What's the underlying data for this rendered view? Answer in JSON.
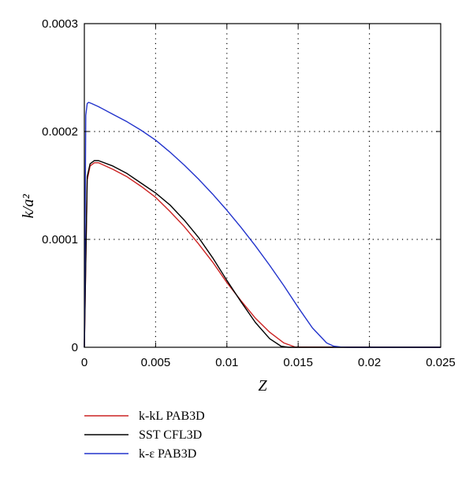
{
  "chart_data": {
    "type": "line",
    "xlabel": "Z",
    "ylabel": "k/a²",
    "xlim": [
      0,
      0.025
    ],
    "ylim": [
      0,
      0.0003
    ],
    "x_ticks": [
      0,
      0.005,
      0.01,
      0.015,
      0.02,
      0.025
    ],
    "x_tick_labels": [
      "0",
      "0.005",
      "0.01",
      "0.015",
      "0.02",
      "0.025"
    ],
    "y_ticks": [
      0,
      0.0001,
      0.0002,
      0.0003
    ],
    "y_tick_labels": [
      "0",
      "0.0001",
      "0.0002",
      "0.0003"
    ],
    "grid": "dotted",
    "legend_position": "below",
    "series": [
      {
        "name": "k-kL PAB3D",
        "color": "#cc2222",
        "x": [
          0,
          0.0002,
          0.0004,
          0.0007,
          0.001,
          0.002,
          0.003,
          0.004,
          0.005,
          0.006,
          0.007,
          0.008,
          0.009,
          0.01,
          0.011,
          0.012,
          0.013,
          0.014,
          0.0148,
          0.025
        ],
        "y": [
          0,
          0.000155,
          0.000168,
          0.000171,
          0.000171,
          0.000165,
          0.000158,
          0.000149,
          0.000139,
          0.000126,
          0.000112,
          9.6e-05,
          7.9e-05,
          6e-05,
          4.3e-05,
          2.7e-05,
          1.4e-05,
          4e-06,
          2e-07,
          0
        ]
      },
      {
        "name": "SST CFL3D",
        "color": "#000000",
        "x": [
          0,
          0.0002,
          0.0004,
          0.0007,
          0.001,
          0.002,
          0.003,
          0.004,
          0.005,
          0.006,
          0.007,
          0.008,
          0.009,
          0.01,
          0.011,
          0.012,
          0.013,
          0.0138,
          0.0143,
          0.025
        ],
        "y": [
          0,
          0.000158,
          0.00017,
          0.000173,
          0.000173,
          0.000168,
          0.000161,
          0.000152,
          0.000143,
          0.000132,
          0.000118,
          0.000102,
          8.3e-05,
          6.2e-05,
          4.2e-05,
          2.3e-05,
          8e-06,
          1e-06,
          0,
          0
        ]
      },
      {
        "name": "k-ε PAB3D",
        "color": "#2233cc",
        "x": [
          0,
          0.0001,
          0.0002,
          0.0003,
          0.0005,
          0.001,
          0.002,
          0.003,
          0.004,
          0.005,
          0.006,
          0.007,
          0.008,
          0.009,
          0.01,
          0.011,
          0.012,
          0.013,
          0.014,
          0.015,
          0.016,
          0.017,
          0.0175,
          0.018,
          0.0185,
          0.025
        ],
        "y": [
          0,
          0.000215,
          0.000226,
          0.000227,
          0.000226,
          0.000223,
          0.000216,
          0.000209,
          0.000201,
          0.000192,
          0.000181,
          0.000169,
          0.000156,
          0.000142,
          0.000127,
          0.000111,
          9.4e-05,
          7.6e-05,
          5.7e-05,
          3.7e-05,
          1.8e-05,
          4e-06,
          1e-06,
          2e-07,
          0,
          0
        ]
      }
    ]
  }
}
